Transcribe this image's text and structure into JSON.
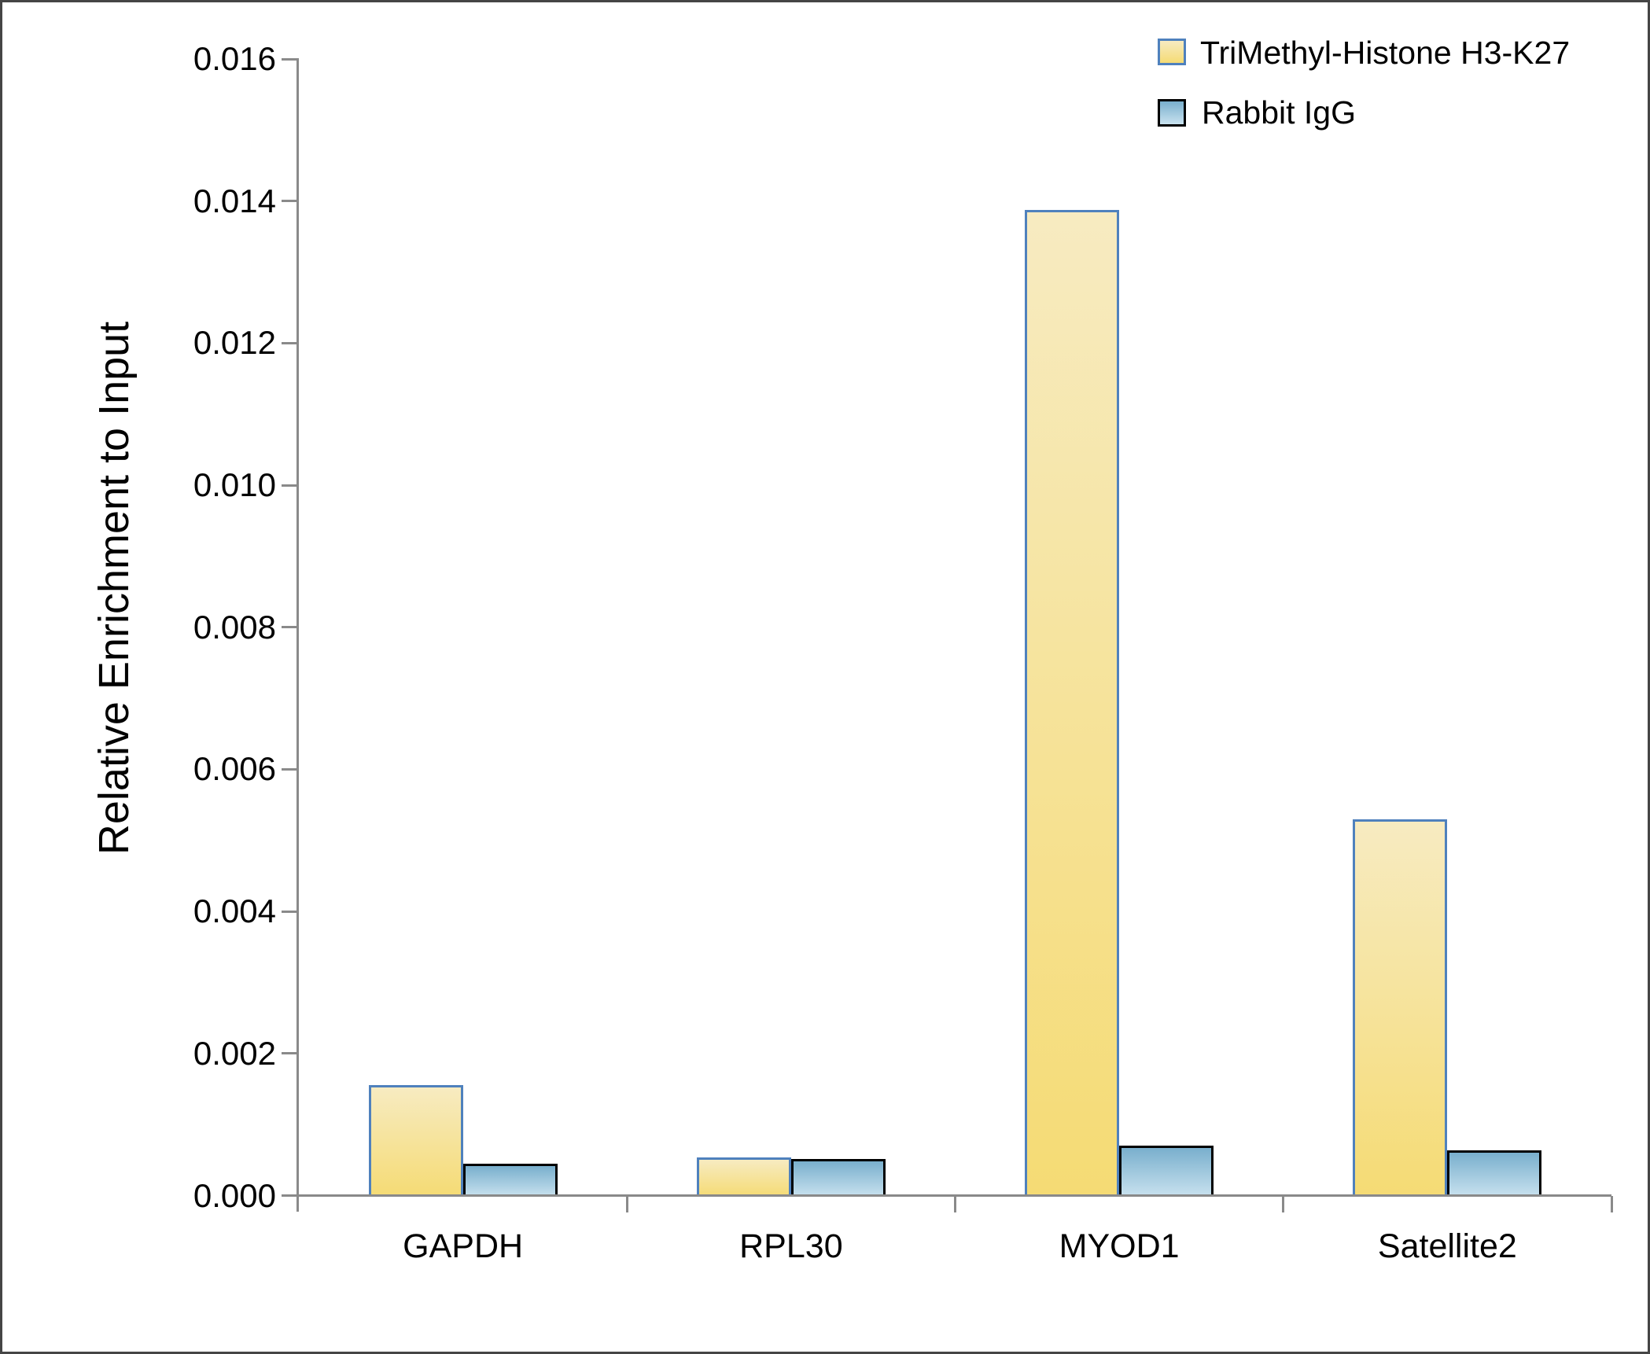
{
  "chart_data": {
    "type": "bar",
    "title": "",
    "categories": [
      "GAPDH",
      "RPL30",
      "MYOD1",
      "Satellite2"
    ],
    "series": [
      {
        "name": "TriMethyl-Histone H3-K27",
        "values": [
          0.00156,
          0.00054,
          0.01388,
          0.0053
        ],
        "color_top": "#F7EBC1",
        "color_bottom": "#F5DB74",
        "border_color": "#4F81BD"
      },
      {
        "name": "Rabbit IgG",
        "values": [
          0.00045,
          0.00052,
          0.0007,
          0.00064
        ],
        "color_top": "#79AFCD",
        "color_bottom": "#C9E2EF",
        "border_color": "#000000"
      }
    ],
    "xlabel": "",
    "ylabel": "Relative Enrichment to Input",
    "ylim": [
      0,
      0.016
    ],
    "ytick_labels": [
      "0.000",
      "0.002",
      "0.004",
      "0.006",
      "0.008",
      "0.010",
      "0.012",
      "0.014",
      "0.016"
    ],
    "grid": false,
    "legend_position": "top-right",
    "axis_color": "#8A8A8A",
    "text_color": "#000000"
  }
}
